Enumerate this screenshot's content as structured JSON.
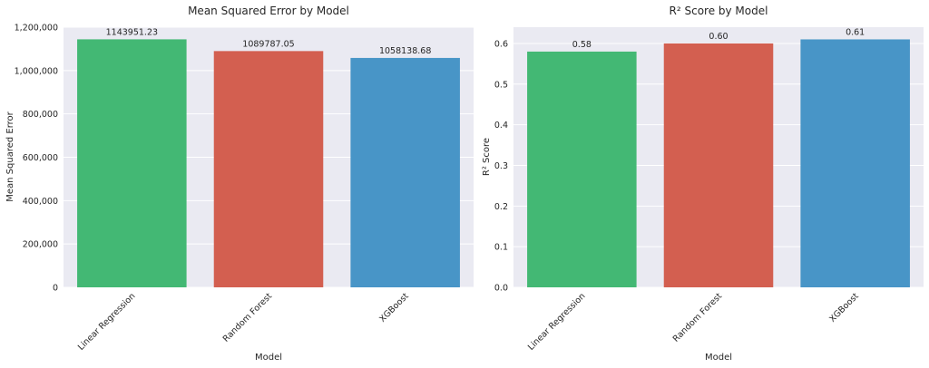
{
  "chart_data": [
    {
      "type": "bar",
      "title": "Mean Squared Error by Model",
      "xlabel": "Model",
      "ylabel": "Mean Squared Error",
      "categories": [
        "Linear Regression",
        "Random Forest",
        "XGBoost"
      ],
      "values": [
        1143951.23,
        1089787.05,
        1058138.68
      ],
      "data_labels": [
        "1143951.23",
        "1089787.05",
        "1058138.68"
      ],
      "colors": [
        "#43b874",
        "#d35f50",
        "#4895c7"
      ],
      "ylim": [
        0,
        1200000
      ],
      "yticks": [
        0,
        200000,
        400000,
        600000,
        800000,
        1000000,
        1200000
      ],
      "ytick_labels": [
        "0",
        "200,000",
        "400,000",
        "600,000",
        "800,000",
        "1,000,000",
        "1,200,000"
      ],
      "grid": true,
      "background": "#eaeaf2"
    },
    {
      "type": "bar",
      "title": "R² Score by Model",
      "xlabel": "Model",
      "ylabel": "R² Score",
      "categories": [
        "Linear Regression",
        "Random Forest",
        "XGBoost"
      ],
      "values": [
        0.58,
        0.6,
        0.61
      ],
      "data_labels": [
        "0.58",
        "0.60",
        "0.61"
      ],
      "colors": [
        "#43b874",
        "#d35f50",
        "#4895c7"
      ],
      "ylim": [
        0,
        0.64
      ],
      "yticks": [
        0,
        0.1,
        0.2,
        0.3,
        0.4,
        0.5,
        0.6
      ],
      "ytick_labels": [
        "0.0",
        "0.1",
        "0.2",
        "0.3",
        "0.4",
        "0.5",
        "0.6"
      ],
      "grid": true,
      "background": "#eaeaf2"
    }
  ]
}
